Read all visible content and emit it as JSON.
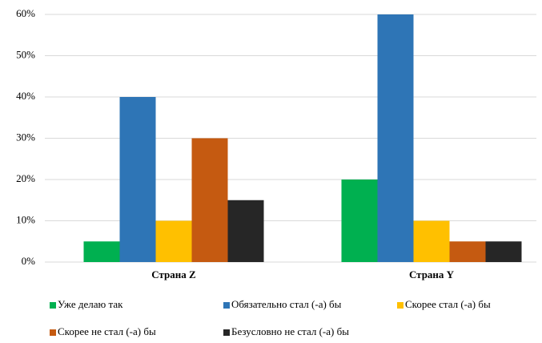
{
  "chart_data": {
    "type": "bar",
    "categories": [
      "Страна Z",
      "Страна Y"
    ],
    "series": [
      {
        "name": "Уже делаю так",
        "color": "#00b050",
        "values": [
          5,
          20
        ]
      },
      {
        "name": "Обязательно стал (-а) бы",
        "color": "#2e75b6",
        "values": [
          40,
          60
        ]
      },
      {
        "name": "Скорее стал (-а) бы",
        "color": "#ffc000",
        "values": [
          10,
          10
        ]
      },
      {
        "name": "Скорее не стал (-а) бы",
        "color": "#c55a11",
        "values": [
          30,
          5
        ]
      },
      {
        "name": "Безусловно не стал (-а) бы",
        "color": "#262626",
        "values": [
          15,
          5
        ]
      }
    ],
    "ylim": [
      0,
      60
    ],
    "yticks": [
      {
        "value": 0,
        "label": "0%"
      },
      {
        "value": 10,
        "label": "10%"
      },
      {
        "value": 20,
        "label": "20%"
      },
      {
        "value": 30,
        "label": "30%"
      },
      {
        "value": 40,
        "label": "40%"
      },
      {
        "value": 50,
        "label": "50%"
      },
      {
        "value": 60,
        "label": "60%"
      }
    ],
    "grid": true,
    "legend": "bottom"
  }
}
